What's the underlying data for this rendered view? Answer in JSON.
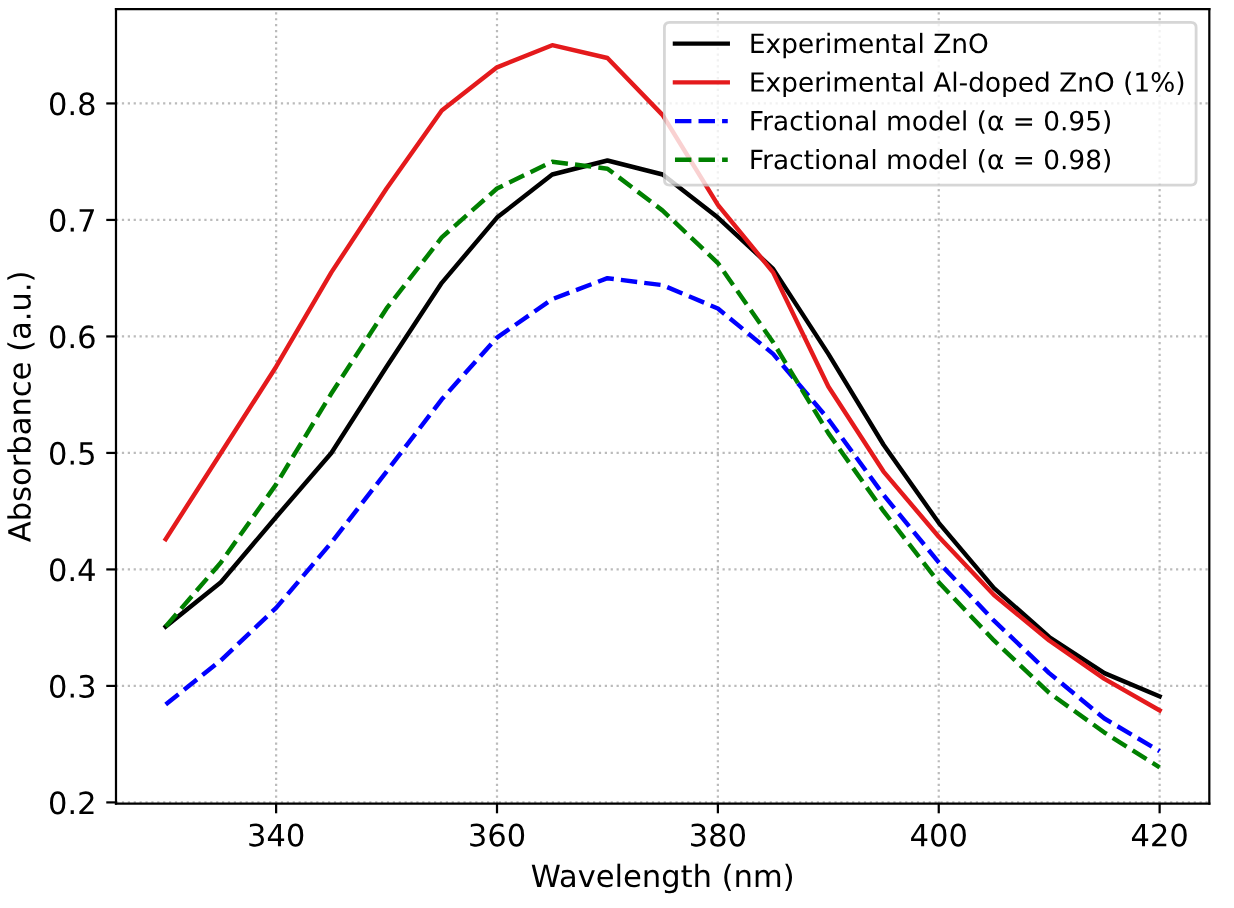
{
  "chart_data": {
    "type": "line",
    "xlabel": "Wavelength (nm)",
    "ylabel": "Absorbance (a.u.)",
    "x": [
      330,
      335,
      340,
      345,
      350,
      355,
      360,
      365,
      370,
      375,
      380,
      385,
      390,
      395,
      400,
      405,
      410,
      415,
      420
    ],
    "series": [
      {
        "name": "Experimental ZnO",
        "color": "#000000",
        "line_style": "solid",
        "values": [
          0.351,
          0.389,
          0.445,
          0.5,
          0.574,
          0.646,
          0.702,
          0.739,
          0.751,
          0.739,
          0.702,
          0.658,
          0.585,
          0.507,
          0.44,
          0.384,
          0.342,
          0.311,
          0.291
        ]
      },
      {
        "name": "Experimental Al-doped ZnO (1%)",
        "color": "#e41a1c",
        "line_style": "solid",
        "values": [
          0.426,
          0.5,
          0.574,
          0.655,
          0.727,
          0.794,
          0.831,
          0.85,
          0.839,
          0.79,
          0.713,
          0.655,
          0.557,
          0.484,
          0.428,
          0.378,
          0.339,
          0.306,
          0.279
        ]
      },
      {
        "name": "Fractional model (α = 0.95)",
        "color": "#0000ff",
        "line_style": "dashed",
        "values": [
          0.284,
          0.322,
          0.367,
          0.423,
          0.484,
          0.546,
          0.599,
          0.632,
          0.65,
          0.644,
          0.624,
          0.585,
          0.529,
          0.464,
          0.406,
          0.356,
          0.311,
          0.272,
          0.244
        ]
      },
      {
        "name": "Fractional model (α = 0.98)",
        "color": "#008000",
        "line_style": "dashed",
        "values": [
          0.351,
          0.406,
          0.473,
          0.551,
          0.624,
          0.685,
          0.727,
          0.75,
          0.744,
          0.708,
          0.663,
          0.595,
          0.517,
          0.45,
          0.389,
          0.339,
          0.294,
          0.26,
          0.23
        ]
      }
    ],
    "xlim": [
      325.5,
      424.5
    ],
    "ylim": [
      0.199,
      0.881
    ],
    "xticks": [
      340,
      360,
      380,
      400,
      420
    ],
    "yticks": [
      0.2,
      0.3,
      0.4,
      0.5,
      0.6,
      0.7,
      0.8
    ],
    "grid": true,
    "legend": "top right",
    "marker": "none"
  }
}
